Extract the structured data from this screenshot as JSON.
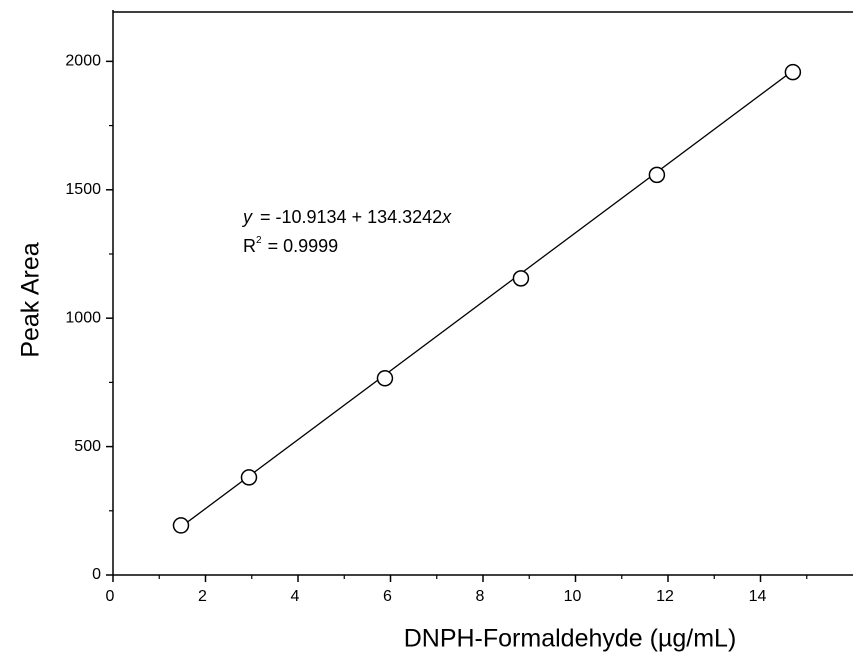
{
  "chart_data": {
    "type": "scatter",
    "x_label": "DNPH-Formaldehyde (µg/mL)",
    "y_label": "Peak Area",
    "series": [
      {
        "x": [
          1.47,
          2.94,
          5.88,
          8.82,
          11.76,
          14.7
        ],
        "values": [
          193,
          380,
          766,
          1155,
          1558,
          1958
        ],
        "color": "#ffffff"
      }
    ],
    "fit": {
      "x": [
        1.4,
        14.7
      ],
      "values": [
        177.9,
        1963.7
      ],
      "color": "#000000"
    },
    "equation": {
      "y": "y",
      "body": "= -10.9134 + 134.3242",
      "x": "x"
    },
    "r_squared": {
      "r": "R",
      "sup": "2",
      "body": "= 0.9999"
    },
    "xlim": [
      0,
      16
    ],
    "ylim": [
      0,
      2200
    ],
    "xticks": [
      0,
      2,
      4,
      6,
      8,
      10,
      12,
      14
    ],
    "yticks": [
      0,
      500,
      1000,
      1500,
      2000
    ],
    "x_minor_ticks": [
      1,
      3,
      5,
      7,
      9,
      11,
      13,
      15
    ],
    "y_minor_ticks": [
      250,
      750,
      1250,
      1750
    ]
  }
}
